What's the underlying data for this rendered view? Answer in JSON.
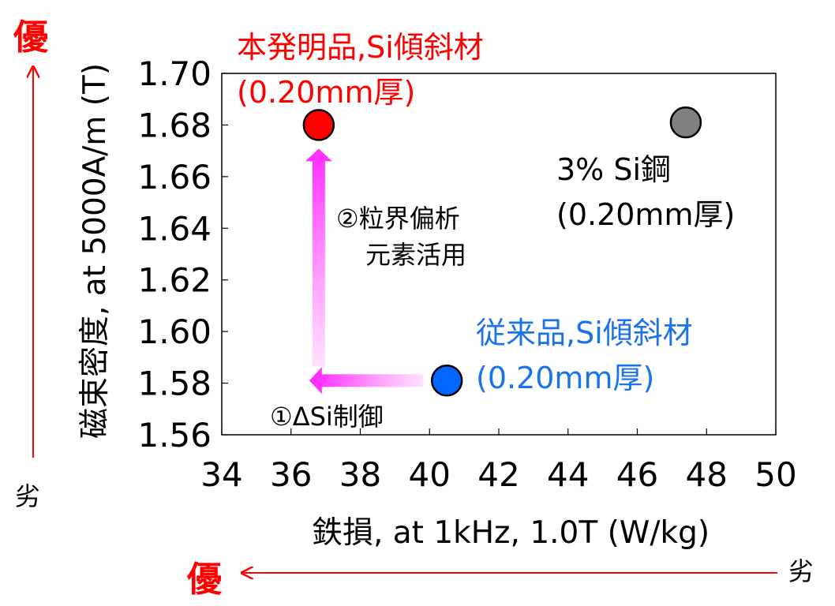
{
  "chart_data": {
    "type": "scatter",
    "xlabel": "鉄損, at 1kHz, 1.0T (W/kg)",
    "ylabel": "磁束密度, at 5000A/m (T)",
    "xlim": [
      34,
      50
    ],
    "ylim": [
      1.56,
      1.7
    ],
    "x_ticks": [
      "34",
      "36",
      "38",
      "40",
      "42",
      "44",
      "46",
      "48",
      "50"
    ],
    "y_ticks": [
      "1.70",
      "1.68",
      "1.66",
      "1.64",
      "1.62",
      "1.60",
      "1.58",
      "1.56"
    ],
    "grid": false,
    "points": [
      {
        "x": 36.8,
        "y": 1.68,
        "color": "#ff0000",
        "label_line1": "本発明品,Si傾斜材",
        "label_line2": "(0.20mm厚)",
        "label_color": "#ff0000"
      },
      {
        "x": 47.4,
        "y": 1.681,
        "color": "#808080",
        "label_line1": "3% Si鋼",
        "label_line2": "(0.20mm厚)",
        "label_color": "#000000"
      },
      {
        "x": 40.5,
        "y": 1.581,
        "color": "#0066ff",
        "label_line1": "従来品,Si傾斜材",
        "label_line2": "(0.20mm厚)",
        "label_color": "#1a73e8"
      }
    ],
    "annotations": {
      "step1": "①ΔSi制御",
      "step2_line1": "②粒界偏析",
      "step2_line2": "元素活用",
      "arrow_color": "#ff33ff"
    },
    "axis_quality": {
      "y_better": "優",
      "y_worse": "劣",
      "x_better": "優",
      "x_worse": "劣",
      "better_color": "#ff0000",
      "arrow_color": "#ff0000"
    }
  }
}
